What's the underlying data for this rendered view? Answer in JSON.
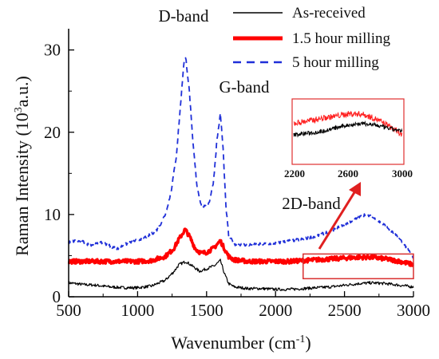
{
  "chart_data": {
    "type": "line",
    "title": "",
    "xlabel_main": "Wavenumber (cm",
    "xlabel_sup": "-1",
    "xlabel_tail": ")",
    "ylabel_main": "Raman Intensity (10",
    "ylabel_sup": "3",
    "ylabel_tail": "a.u.)",
    "xlim": [
      500,
      3000
    ],
    "ylim": [
      0,
      32
    ],
    "x_ticks": [
      "500",
      "1000",
      "1500",
      "2000",
      "2500",
      "3000"
    ],
    "y_ticks": [
      "0",
      "10",
      "20",
      "30"
    ],
    "legend_position": "top-right",
    "series": [
      {
        "name": "As-received",
        "color": "#000000",
        "style": "solid-thin",
        "points": [
          [
            500,
            1.7
          ],
          [
            600,
            1.5
          ],
          [
            700,
            1.4
          ],
          [
            800,
            1.2
          ],
          [
            900,
            1.1
          ],
          [
            1000,
            1.1
          ],
          [
            1100,
            1.3
          ],
          [
            1200,
            2.0
          ],
          [
            1260,
            3.0
          ],
          [
            1300,
            3.9
          ],
          [
            1350,
            4.3
          ],
          [
            1400,
            3.7
          ],
          [
            1450,
            3.1
          ],
          [
            1500,
            3.4
          ],
          [
            1560,
            3.8
          ],
          [
            1600,
            4.4
          ],
          [
            1630,
            2.8
          ],
          [
            1660,
            1.6
          ],
          [
            1700,
            1.2
          ],
          [
            1800,
            1.0
          ],
          [
            1900,
            1.0
          ],
          [
            2000,
            0.9
          ],
          [
            2100,
            0.9
          ],
          [
            2200,
            1.0
          ],
          [
            2300,
            1.1
          ],
          [
            2400,
            1.2
          ],
          [
            2500,
            1.4
          ],
          [
            2600,
            1.6
          ],
          [
            2700,
            1.7
          ],
          [
            2800,
            1.6
          ],
          [
            2900,
            1.4
          ],
          [
            2950,
            1.3
          ],
          [
            3000,
            1.2
          ]
        ]
      },
      {
        "name": "1.5 hour milling",
        "color": "#ff0000",
        "style": "solid-thick",
        "points": [
          [
            500,
            4.3
          ],
          [
            600,
            4.3
          ],
          [
            700,
            4.3
          ],
          [
            800,
            4.3
          ],
          [
            900,
            4.3
          ],
          [
            1000,
            4.3
          ],
          [
            1100,
            4.4
          ],
          [
            1200,
            4.9
          ],
          [
            1260,
            5.8
          ],
          [
            1300,
            7.0
          ],
          [
            1345,
            8.2
          ],
          [
            1380,
            7.2
          ],
          [
            1420,
            5.8
          ],
          [
            1460,
            5.3
          ],
          [
            1500,
            5.4
          ],
          [
            1550,
            5.9
          ],
          [
            1600,
            6.8
          ],
          [
            1625,
            6.0
          ],
          [
            1660,
            4.9
          ],
          [
            1700,
            4.5
          ],
          [
            1800,
            4.3
          ],
          [
            1900,
            4.3
          ],
          [
            2000,
            4.3
          ],
          [
            2100,
            4.3
          ],
          [
            2200,
            4.4
          ],
          [
            2300,
            4.5
          ],
          [
            2400,
            4.6
          ],
          [
            2500,
            4.7
          ],
          [
            2600,
            4.8
          ],
          [
            2700,
            4.8
          ],
          [
            2800,
            4.6
          ],
          [
            2900,
            4.3
          ],
          [
            3000,
            3.9
          ]
        ]
      },
      {
        "name": "5 hour milling",
        "color": "#1f2fd8",
        "style": "dashed",
        "points": [
          [
            500,
            6.6
          ],
          [
            550,
            6.8
          ],
          [
            600,
            6.7
          ],
          [
            650,
            6.3
          ],
          [
            700,
            6.4
          ],
          [
            750,
            6.6
          ],
          [
            800,
            6.2
          ],
          [
            850,
            5.8
          ],
          [
            900,
            6.3
          ],
          [
            950,
            6.6
          ],
          [
            1000,
            6.9
          ],
          [
            1050,
            7.2
          ],
          [
            1100,
            7.6
          ],
          [
            1150,
            8.3
          ],
          [
            1200,
            10.0
          ],
          [
            1240,
            12.5
          ],
          [
            1280,
            17.0
          ],
          [
            1310,
            23.0
          ],
          [
            1335,
            28.5
          ],
          [
            1350,
            29.0
          ],
          [
            1375,
            25.0
          ],
          [
            1400,
            19.0
          ],
          [
            1430,
            13.5
          ],
          [
            1460,
            11.2
          ],
          [
            1490,
            10.9
          ],
          [
            1520,
            11.5
          ],
          [
            1550,
            14.0
          ],
          [
            1575,
            19.0
          ],
          [
            1600,
            22.2
          ],
          [
            1620,
            18.0
          ],
          [
            1640,
            11.0
          ],
          [
            1660,
            7.5
          ],
          [
            1700,
            6.4
          ],
          [
            1800,
            6.3
          ],
          [
            1900,
            6.4
          ],
          [
            2000,
            6.5
          ],
          [
            2100,
            6.8
          ],
          [
            2200,
            7.0
          ],
          [
            2300,
            7.4
          ],
          [
            2400,
            8.0
          ],
          [
            2500,
            8.8
          ],
          [
            2600,
            9.6
          ],
          [
            2650,
            10.0
          ],
          [
            2700,
            9.7
          ],
          [
            2800,
            8.6
          ],
          [
            2900,
            7.0
          ],
          [
            2950,
            6.0
          ],
          [
            3000,
            4.7
          ]
        ]
      }
    ],
    "annotations": [
      {
        "text": "D-band"
      },
      {
        "text": "G-band"
      },
      {
        "text": "2D-band"
      }
    ],
    "inset": {
      "xlim": [
        2200,
        3000
      ],
      "x_ticks": [
        "2200",
        "2600",
        "3000"
      ],
      "border_color": "#e03030"
    },
    "highlight_box": {
      "x_range": [
        2200,
        3000
      ],
      "y_range": [
        2.2,
        5.2
      ],
      "color": "#d83030"
    }
  }
}
